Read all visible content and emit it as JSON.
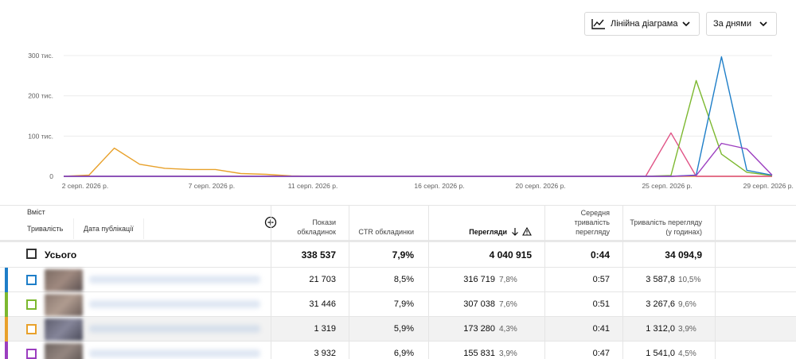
{
  "toolbar": {
    "chart_type_label": "Лінійна діаграма",
    "period_label": "За днями"
  },
  "chart_data": {
    "type": "line",
    "x": [
      "2 серп. 2026 р.",
      "3 серп. 2026 р.",
      "4 серп. 2026 р.",
      "5 серп. 2026 р.",
      "6 серп. 2026 р.",
      "7 серп. 2026 р.",
      "8 серп. 2026 р.",
      "9 серп. 2026 р.",
      "10 серп. 2026 р.",
      "11 серп. 2026 р.",
      "12 серп. 2026 р.",
      "13 серп. 2026 р.",
      "14 серп. 2026 р.",
      "15 серп. 2026 р.",
      "16 серп. 2026 р.",
      "17 серп. 2026 р.",
      "18 серп. 2026 р.",
      "19 серп. 2026 р.",
      "20 серп. 2026 р.",
      "21 серп. 2026 р.",
      "22 серп. 2026 р.",
      "23 серп. 2026 р.",
      "24 серп. 2026 р.",
      "25 серп. 2026 р.",
      "26 серп. 2026 р.",
      "27 серп. 2026 р.",
      "28 серп. 2026 р.",
      "29 серп. 2026 р.",
      "30 серп. 2026 р."
    ],
    "x_tick_labels": [
      "2 серп. 2026 р.",
      "7 серп. 2026 р.",
      "11 серп. 2026 р.",
      "16 серп. 2026 р.",
      "20 серп. 2026 р.",
      "25 серп. 2026 р.",
      "29 серп. 2026 р."
    ],
    "x_tick_index": [
      0,
      5,
      9,
      14,
      18,
      23,
      27
    ],
    "y_tick_labels": [
      "0",
      "100 тис.",
      "200 тис.",
      "300 тис."
    ],
    "y_tick_values": [
      0,
      100000,
      200000,
      300000
    ],
    "ylim": [
      0,
      300000
    ],
    "grid": true,
    "series": [
      {
        "color": "#e8a12b",
        "values": [
          0,
          3000,
          70000,
          30000,
          20000,
          17000,
          17000,
          7000,
          5000,
          1000,
          0,
          0,
          0,
          0,
          0,
          0,
          0,
          0,
          0,
          0,
          0,
          0,
          0,
          0,
          0,
          0,
          0,
          0,
          0
        ]
      },
      {
        "color": "#e05386",
        "values": [
          0,
          0,
          0,
          0,
          0,
          0,
          0,
          0,
          0,
          0,
          0,
          0,
          0,
          0,
          0,
          0,
          0,
          0,
          0,
          0,
          0,
          0,
          0,
          0,
          108000,
          0,
          0,
          0,
          0
        ]
      },
      {
        "color": "#7cb82f",
        "values": [
          0,
          0,
          0,
          0,
          0,
          0,
          0,
          0,
          0,
          0,
          0,
          0,
          0,
          0,
          0,
          0,
          0,
          0,
          0,
          0,
          0,
          0,
          0,
          0,
          2000,
          238000,
          55000,
          10000,
          2000
        ]
      },
      {
        "color": "#1e7ec8",
        "values": [
          0,
          0,
          0,
          0,
          0,
          0,
          0,
          0,
          0,
          0,
          0,
          0,
          0,
          0,
          0,
          0,
          0,
          0,
          0,
          0,
          0,
          0,
          0,
          0,
          0,
          3000,
          297000,
          15000,
          3000
        ]
      },
      {
        "color": "#9b3dbf",
        "values": [
          0,
          0,
          0,
          0,
          0,
          0,
          0,
          0,
          0,
          0,
          0,
          0,
          0,
          0,
          0,
          0,
          0,
          0,
          0,
          0,
          0,
          0,
          0,
          0,
          0,
          2000,
          82000,
          68000,
          3000
        ]
      }
    ]
  },
  "table": {
    "content_header": "Вміст",
    "subtab_duration": "Тривалість",
    "subtab_published": "Дата публікації",
    "columns": {
      "impressions": "Покази обкладинок",
      "ctr": "CTR обкладинки",
      "views": "Перегляди",
      "avg_duration": "Середня тривалість перегляду",
      "watch_time": "Тривалість перегляду (у годинах)"
    },
    "total": {
      "label": "Усього",
      "impressions": "338 537",
      "ctr": "7,9%",
      "views": "4 040 915",
      "avg_duration": "0:44",
      "watch_time": "34 094,9"
    },
    "rows": [
      {
        "color": "#1e7ec8",
        "impressions": "21 703",
        "ctr": "8,5%",
        "views": "316 719",
        "views_pct": "7,8%",
        "avg_duration": "0:57",
        "watch_time": "3 587,8",
        "watch_pct": "10,5%"
      },
      {
        "color": "#7cb82f",
        "impressions": "31 446",
        "ctr": "7,9%",
        "views": "307 038",
        "views_pct": "7,6%",
        "avg_duration": "0:51",
        "watch_time": "3 267,6",
        "watch_pct": "9,6%"
      },
      {
        "color": "#e8a12b",
        "impressions": "1 319",
        "ctr": "5,9%",
        "views": "173 280",
        "views_pct": "4,3%",
        "avg_duration": "0:41",
        "watch_time": "1 312,0",
        "watch_pct": "3,9%"
      },
      {
        "color": "#9b3dbf",
        "impressions": "3 932",
        "ctr": "6,9%",
        "views": "155 831",
        "views_pct": "3,9%",
        "avg_duration": "0:47",
        "watch_time": "1 541,0",
        "watch_pct": "4,5%"
      }
    ]
  }
}
